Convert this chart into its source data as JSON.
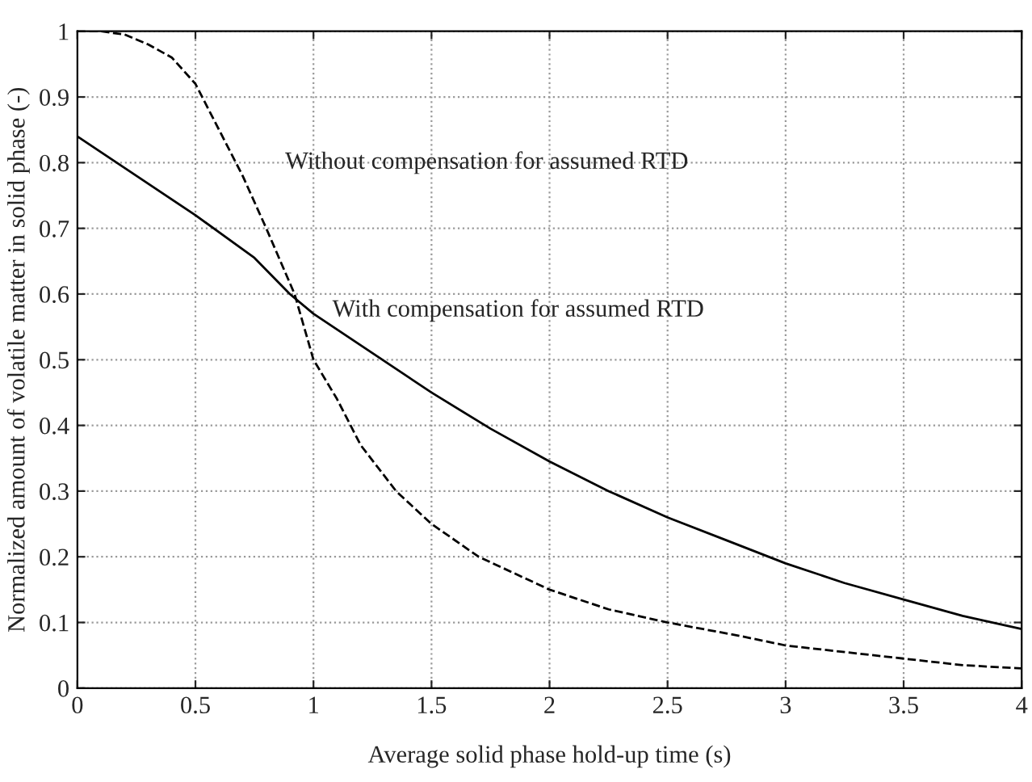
{
  "chart_data": {
    "type": "line",
    "xlabel": "Average solid phase hold-up time (s)",
    "ylabel": "Normalized amount of volatile matter in solid phase (-)",
    "xlim": [
      0,
      4
    ],
    "ylim": [
      0,
      1
    ],
    "xticks": [
      0,
      0.5,
      1,
      1.5,
      2,
      2.5,
      3,
      3.5,
      4
    ],
    "yticks": [
      0,
      0.1,
      0.2,
      0.3,
      0.4,
      0.5,
      0.6,
      0.7,
      0.8,
      0.9,
      1
    ],
    "grid": true,
    "marker": "none",
    "series": [
      {
        "color": "#000000",
        "line_style": "solid",
        "x": [
          0,
          0.25,
          0.5,
          0.75,
          0.9,
          1,
          1.25,
          1.5,
          1.75,
          2,
          2.25,
          2.5,
          2.75,
          3,
          3.25,
          3.5,
          3.75,
          4
        ],
        "values": [
          0.84,
          0.78,
          0.72,
          0.655,
          0.6,
          0.57,
          0.51,
          0.45,
          0.395,
          0.345,
          0.3,
          0.26,
          0.225,
          0.19,
          0.16,
          0.135,
          0.11,
          0.09
        ]
      },
      {
        "color": "#000000",
        "line_style": "dashed",
        "x": [
          0,
          0.1,
          0.2,
          0.3,
          0.4,
          0.5,
          0.6,
          0.7,
          0.8,
          0.92,
          1,
          1.1,
          1.2,
          1.35,
          1.5,
          1.7,
          2,
          2.25,
          2.5,
          2.8,
          3,
          3.25,
          3.5,
          3.75,
          4
        ],
        "values": [
          1,
          1,
          0.995,
          0.98,
          0.96,
          0.92,
          0.85,
          0.78,
          0.7,
          0.6,
          0.5,
          0.44,
          0.37,
          0.3,
          0.25,
          0.2,
          0.15,
          0.12,
          0.1,
          0.08,
          0.065,
          0.055,
          0.045,
          0.035,
          0.03
        ]
      }
    ],
    "annotations": [
      "Without compensation for assumed RTD",
      "With compensation for assumed RTD"
    ]
  }
}
